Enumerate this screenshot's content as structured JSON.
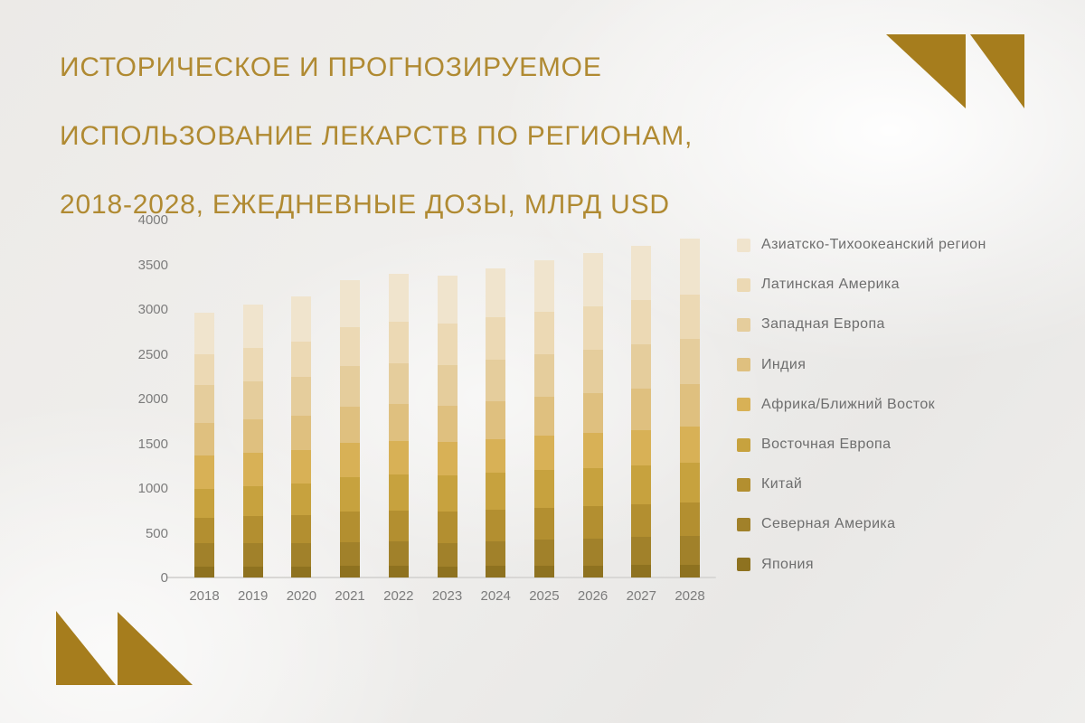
{
  "title": {
    "line1": "ИСТОРИЧЕСКОЕ И ПРОГНОЗИРУЕМОЕ",
    "line2": "ИСПОЛЬЗОВАНИЕ ЛЕКАРСТВ ПО РЕГИОНАМ,",
    "line3": "2018-2028, ЕЖЕДНЕВНЫЕ ДОЗЫ, МЛРД USD"
  },
  "colors": {
    "title_gold": "#b08a32",
    "logo_gold": "#a67d1d",
    "axis_text": "#7c7c7c",
    "legend_text": "#6e6e6e",
    "baseline": "#d8d7d5",
    "background": "#ecebe9"
  },
  "chart_data": {
    "type": "bar",
    "stacked": true,
    "title": "Историческое и прогнозируемое использование лекарств по регионам, 2018-2028, ежедневные дозы, млрд USD",
    "xlabel": "",
    "ylabel": "",
    "ylim": [
      0,
      4000
    ],
    "yticks": [
      0,
      500,
      1000,
      1500,
      2000,
      2500,
      3000,
      3500,
      4000
    ],
    "grid": false,
    "legend_position": "right",
    "categories": [
      "2018",
      "2019",
      "2020",
      "2021",
      "2022",
      "2023",
      "2024",
      "2025",
      "2026",
      "2027",
      "2028"
    ],
    "series": [
      {
        "name": "Азиатско-Тихоокеанский регион",
        "color": "#f0e4cd",
        "values": [
          465,
          480,
          500,
          525,
          540,
          535,
          550,
          575,
          590,
          605,
          620
        ]
      },
      {
        "name": "Латинская Америка",
        "color": "#ecd9b4",
        "values": [
          345,
          375,
          395,
          435,
          460,
          470,
          475,
          480,
          485,
          490,
          495
        ]
      },
      {
        "name": "Западная Европа",
        "color": "#e5cd9c",
        "values": [
          420,
          425,
          435,
          455,
          460,
          455,
          465,
          475,
          490,
          500,
          510
        ]
      },
      {
        "name": "Индия",
        "color": "#dfc07f",
        "values": [
          365,
          375,
          380,
          400,
          410,
          405,
          420,
          435,
          445,
          460,
          475
        ]
      },
      {
        "name": "Африка/Ближний Восток",
        "color": "#d8b156",
        "values": [
          375,
          375,
          375,
          385,
          380,
          370,
          375,
          380,
          390,
          395,
          400
        ]
      },
      {
        "name": "Восточная Европа",
        "color": "#c7a23e",
        "values": [
          320,
          335,
          355,
          385,
          400,
          405,
          415,
          425,
          430,
          440,
          450
        ]
      },
      {
        "name": "Китай",
        "color": "#b38f30",
        "values": [
          290,
          305,
          315,
          340,
          350,
          355,
          360,
          360,
          365,
          365,
          370
        ]
      },
      {
        "name": "Северная Америка",
        "color": "#a1812a",
        "values": [
          255,
          255,
          260,
          265,
          265,
          260,
          270,
          285,
          295,
          310,
          320
        ]
      },
      {
        "name": "Япония",
        "color": "#8e7220",
        "values": [
          125,
          125,
          125,
          130,
          135,
          125,
          130,
          135,
          135,
          140,
          145
        ]
      }
    ],
    "totals": [
      2960,
      3050,
      3140,
      3320,
      3400,
      3380,
      3460,
      3550,
      3625,
      3705,
      3785
    ]
  }
}
